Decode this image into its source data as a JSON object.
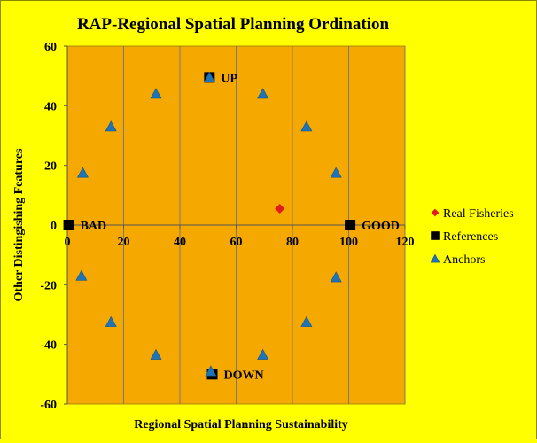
{
  "chart_data": {
    "type": "scatter",
    "title": "RAP-Regional Spatial Planning Ordination",
    "xlabel": "Regional Spatial Planning Sustainability",
    "ylabel": "Other Distingishing Features",
    "xlim": [
      0,
      120
    ],
    "ylim": [
      -60,
      60
    ],
    "xticks": [
      0,
      20,
      40,
      60,
      80,
      100,
      120
    ],
    "yticks": [
      -60,
      -40,
      -20,
      0,
      20,
      40,
      60
    ],
    "grid": "vertical",
    "legend_position": "right",
    "colors": {
      "figure_bg": "#ffff00",
      "plot_bg": "#f5a800",
      "grid": "#7a7a7a",
      "real_fisheries": "#e31a1c",
      "references": "#000000",
      "anchors": "#1f73b7"
    },
    "series": [
      {
        "name": "Real Fisheries",
        "marker": "diamond",
        "points": [
          [
            75.5,
            5.5
          ]
        ]
      },
      {
        "name": "References",
        "marker": "square",
        "points": [
          [
            0.5,
            0
          ],
          [
            100.5,
            0
          ],
          [
            50.5,
            49.5
          ],
          [
            51.5,
            -50
          ]
        ],
        "point_labels": [
          "BAD",
          "GOOD",
          "UP",
          "DOWN"
        ]
      },
      {
        "name": "Anchors",
        "marker": "triangle",
        "points": [
          [
            50.5,
            49.5
          ],
          [
            69.5,
            44
          ],
          [
            85,
            33
          ],
          [
            95.5,
            17.5
          ],
          [
            95.5,
            -17.5
          ],
          [
            85,
            -32.5
          ],
          [
            69.5,
            -43.5
          ],
          [
            51,
            -49
          ],
          [
            31.5,
            -43.5
          ],
          [
            15.5,
            -32.5
          ],
          [
            5,
            -17
          ],
          [
            5.5,
            17.5
          ],
          [
            15.5,
            33
          ],
          [
            31.5,
            44
          ]
        ]
      }
    ]
  }
}
